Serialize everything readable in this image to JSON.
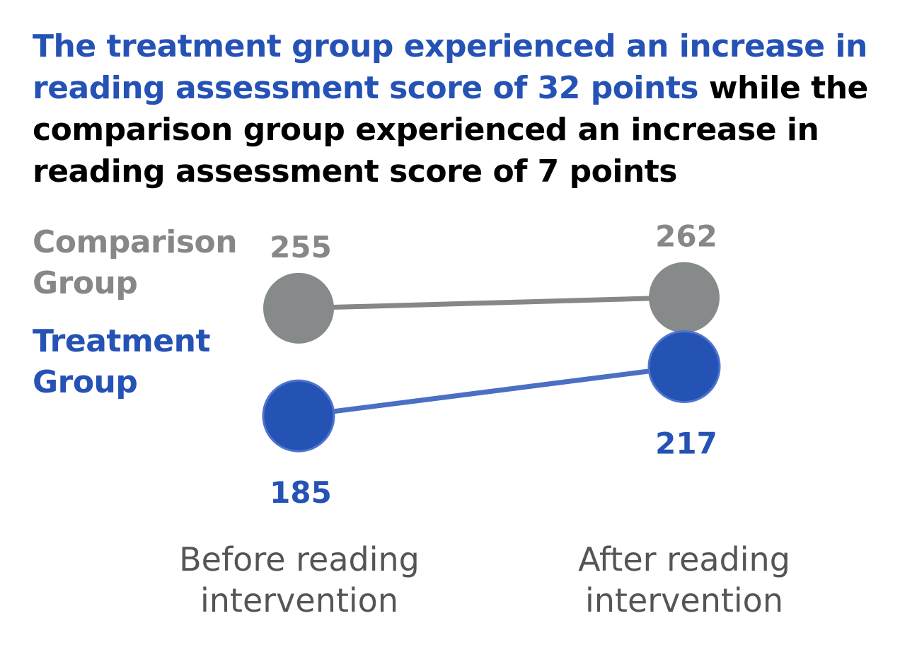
{
  "headline": {
    "accent": "The treatment group experienced an increase in reading assessment score of 32 points",
    "rest": " while the comparison group experienced an increase in reading assessment score of 7 points"
  },
  "colors": {
    "comparison_marker": "#878a8b",
    "comparison_line": "#858789",
    "treatment_marker": "#2552b5",
    "treatment_line": "#4a6fc4",
    "treatment_stroke": "#4e74cf"
  },
  "chart_data": {
    "type": "line",
    "categories": [
      "Before reading intervention",
      "After reading intervention"
    ],
    "series": [
      {
        "name": "Comparison Group",
        "values": [
          255,
          262
        ]
      },
      {
        "name": "Treatment Group",
        "values": [
          185,
          217
        ]
      }
    ],
    "title": "",
    "xlabel": "",
    "ylabel": "",
    "legend": [
      "Comparison Group",
      "Treatment Group"
    ],
    "legend_placement": "left",
    "grid": false
  }
}
